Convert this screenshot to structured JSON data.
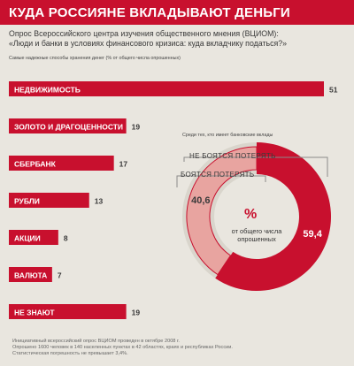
{
  "header": {
    "title": "КУДА РОССИЯНЕ ВКЛАДЫВАЮТ ДЕНЬГИ",
    "subtitle_line1": "Опрос Всероссийского центра изучения общественного мнения (ВЦИОМ):",
    "subtitle_line2": "«Люди и банки в условиях финансового кризиса: куда вкладчику податься?»"
  },
  "bar_note": "Самые надежные способы хранения денег (% от общего числа опрошенных)",
  "donut_note": "Среди тех, кто имеет банковские вклады",
  "donut_labels": {
    "fear": "НЕ БОЯТСЯ ПОТЕРЯТЬ",
    "nofear": "БОЯТСЯ ПОТЕРЯТЬ",
    "center_symbol": "%",
    "center_caption": "от общего числа опрошенных"
  },
  "footer": {
    "line1": "Инициативный всероссийский опрос ВЦИОМ проведен в октябре 2008 г.",
    "line2": "Опрошено 1600 человек в 140 населенных пунктах в 42 областях, краях и республиках России.",
    "line3": "Статистическая погрешность не превышает 3,4%."
  },
  "colors": {
    "accent": "#c8102e",
    "light_slice": "#e8a4a0",
    "background": "#e9e6df"
  },
  "chart_data": [
    {
      "type": "bar",
      "orientation": "horizontal",
      "categories": [
        "НЕДВИЖИМОСТЬ",
        "ЗОЛОТО И ДРАГОЦЕННОСТИ",
        "СБЕРБАНК",
        "РУБЛИ",
        "АКЦИИ",
        "ВАЛЮТА",
        "НЕ ЗНАЮТ"
      ],
      "values": [
        51,
        19,
        17,
        13,
        8,
        7,
        19
      ],
      "value_labels": [
        "51",
        "19",
        "17",
        "13",
        "8",
        "7",
        "19"
      ],
      "xlim": [
        0,
        51
      ],
      "grid": false
    },
    {
      "type": "pie",
      "style": "donut",
      "slices": [
        {
          "label": "НЕ БОЯТСЯ ПОТЕРЯТЬ",
          "value": 59.4,
          "display": "59,4"
        },
        {
          "label": "БОЯТСЯ ПОТЕРЯТЬ",
          "value": 40.6,
          "display": "40,6"
        }
      ]
    }
  ]
}
